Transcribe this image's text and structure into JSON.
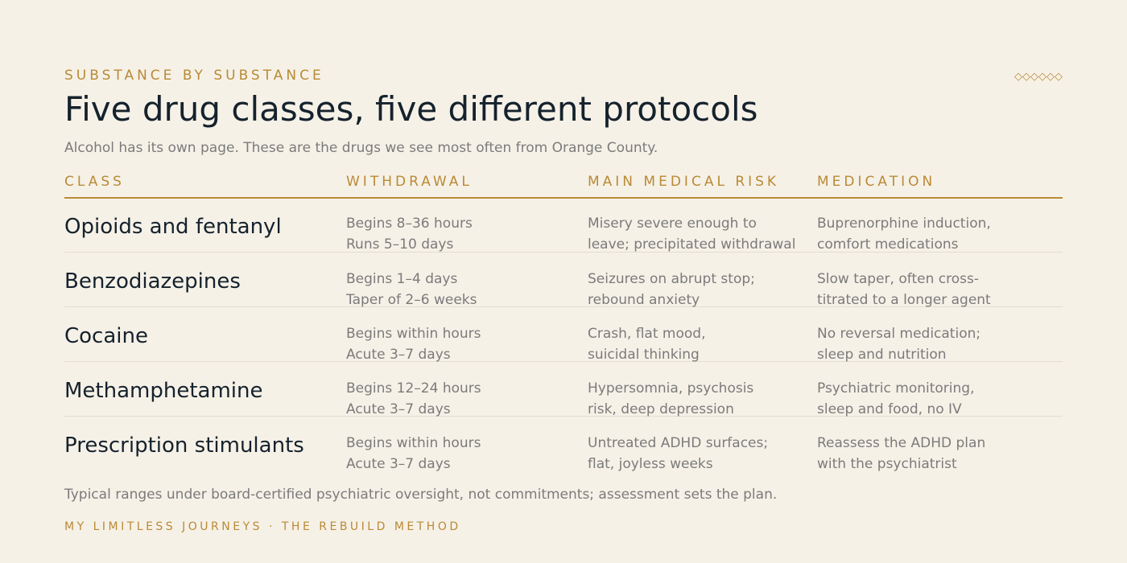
{
  "header": {
    "eyebrow": "SUBSTANCE BY SUBSTANCE",
    "ornament": "◇◇◇◇◇◇",
    "title": "Five drug classes, five different protocols",
    "subtitle": "Alcohol has its own page. These are the drugs we see most often from Orange County."
  },
  "table": {
    "columns": [
      "CLASS",
      "WITHDRAWAL",
      "MAIN MEDICAL RISK",
      "MEDICATION"
    ],
    "rows": [
      {
        "class": "Opioids and fentanyl",
        "withdrawal": [
          "Begins 8–36 hours",
          "Runs 5–10 days"
        ],
        "risk": [
          "Misery severe enough to",
          "leave; precipitated withdrawal"
        ],
        "medication": [
          "Buprenorphine induction,",
          "comfort medications"
        ]
      },
      {
        "class": "Benzodiazepines",
        "withdrawal": [
          "Begins 1–4 days",
          "Taper of 2–6 weeks"
        ],
        "risk": [
          "Seizures on abrupt stop;",
          "rebound anxiety"
        ],
        "medication": [
          "Slow taper, often cross-",
          "titrated to a longer agent"
        ]
      },
      {
        "class": "Cocaine",
        "withdrawal": [
          "Begins within hours",
          "Acute 3–7 days"
        ],
        "risk": [
          "Crash, flat mood,",
          "suicidal thinking"
        ],
        "medication": [
          "No reversal medication;",
          "sleep and nutrition"
        ]
      },
      {
        "class": "Methamphetamine",
        "withdrawal": [
          "Begins 12–24 hours",
          "Acute 3–7 days"
        ],
        "risk": [
          "Hypersomnia, psychosis",
          "risk, deep depression"
        ],
        "medication": [
          "Psychiatric monitoring,",
          "sleep and food, no IV"
        ]
      },
      {
        "class": "Prescription stimulants",
        "withdrawal": [
          "Begins within hours",
          "Acute 3–7 days"
        ],
        "risk": [
          "Untreated ADHD surfaces;",
          "flat, joyless weeks"
        ],
        "medication": [
          "Reassess the ADHD plan",
          "with the psychiatrist"
        ]
      }
    ]
  },
  "note": "Typical ranges under board-certified psychiatric oversight, not commitments; assessment sets the plan.",
  "footer": "MY LIMITLESS JOURNEYS · THE REBUILD METHOD",
  "colors": {
    "background": "#f6f1e7",
    "accent": "#b98a35",
    "heading": "#15222d",
    "body_text": "#7b7b7b"
  }
}
